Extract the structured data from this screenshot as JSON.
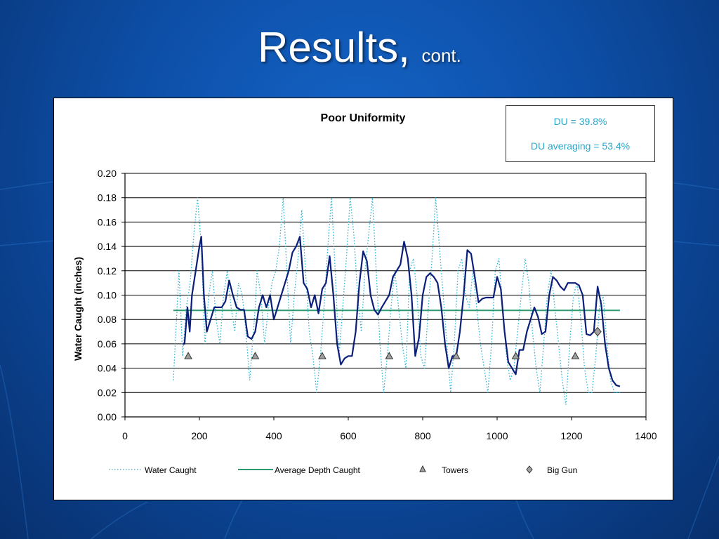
{
  "slide": {
    "title_main": "Results,",
    "title_sub": "cont."
  },
  "du_box": {
    "line1": "DU = 39.8%",
    "line2": "DU averaging = 53.4%"
  },
  "colors": {
    "water_caught": "#27b2d6",
    "smoothed_line": "#0b1f7a",
    "average_depth": "#2e9a70",
    "towers_fill": "#a0a0a0",
    "big_gun_fill": "#a0a0a0",
    "du_text": "#2aa7c9"
  },
  "chart_data": {
    "type": "line",
    "title": "Poor Uniformity",
    "xlabel": "",
    "ylabel": "Water Caught (inches)",
    "xlim": [
      0,
      1400
    ],
    "ylim": [
      0,
      0.2
    ],
    "x_ticks": [
      "0",
      "200",
      "400",
      "600",
      "800",
      "1000",
      "1200",
      "1400"
    ],
    "y_ticks": [
      "0.00",
      "0.02",
      "0.04",
      "0.06",
      "0.08",
      "0.10",
      "0.12",
      "0.14",
      "0.16",
      "0.18",
      "0.20"
    ],
    "grid": "horizontal",
    "legend": "bottom",
    "legend_entries": [
      "Water Caught",
      "Average Depth Caught",
      "Towers",
      "Big Gun"
    ],
    "series": [
      {
        "name": "Water Caught",
        "style": "dotted",
        "x": [
          130,
          145,
          155,
          165,
          175,
          185,
          195,
          205,
          215,
          225,
          235,
          245,
          255,
          265,
          275,
          285,
          295,
          305,
          315,
          325,
          335,
          345,
          350,
          355,
          365,
          375,
          385,
          395,
          405,
          415,
          425,
          435,
          445,
          455,
          465,
          470,
          475,
          485,
          495,
          505,
          515,
          525,
          535,
          545,
          555,
          565,
          575,
          585,
          595,
          605,
          615,
          625,
          635,
          645,
          655,
          665,
          675,
          685,
          695,
          705,
          715,
          725,
          735,
          745,
          755,
          760,
          765,
          775,
          785,
          795,
          805,
          815,
          825,
          835,
          845,
          855,
          865,
          875,
          885,
          895,
          905,
          915,
          925,
          935,
          945,
          955,
          965,
          975,
          985,
          995,
          1005,
          1015,
          1025,
          1035,
          1045,
          1055,
          1065,
          1075,
          1085,
          1095,
          1105,
          1115,
          1125,
          1135,
          1145,
          1155,
          1165,
          1175,
          1185,
          1195,
          1205,
          1215,
          1225,
          1235,
          1245,
          1255,
          1265,
          1275,
          1285,
          1295,
          1305,
          1315,
          1330
        ],
        "values": [
          0.03,
          0.12,
          0.05,
          0.09,
          0.11,
          0.15,
          0.18,
          0.14,
          0.06,
          0.1,
          0.12,
          0.08,
          0.06,
          0.1,
          0.12,
          0.09,
          0.07,
          0.11,
          0.1,
          0.07,
          0.03,
          0.07,
          0.09,
          0.12,
          0.1,
          0.06,
          0.09,
          0.11,
          0.12,
          0.14,
          0.18,
          0.12,
          0.06,
          0.1,
          0.13,
          0.15,
          0.17,
          0.12,
          0.07,
          0.05,
          0.02,
          0.05,
          0.09,
          0.14,
          0.18,
          0.12,
          0.05,
          0.09,
          0.13,
          0.18,
          0.15,
          0.1,
          0.07,
          0.12,
          0.15,
          0.18,
          0.12,
          0.06,
          0.02,
          0.05,
          0.09,
          0.12,
          0.09,
          0.06,
          0.04,
          0.08,
          0.12,
          0.13,
          0.1,
          0.05,
          0.04,
          0.09,
          0.13,
          0.18,
          0.14,
          0.1,
          0.06,
          0.02,
          0.06,
          0.12,
          0.13,
          0.1,
          0.09,
          0.12,
          0.09,
          0.06,
          0.04,
          0.02,
          0.06,
          0.12,
          0.13,
          0.09,
          0.05,
          0.03,
          0.04,
          0.07,
          0.1,
          0.13,
          0.11,
          0.07,
          0.04,
          0.02,
          0.06,
          0.1,
          0.12,
          0.09,
          0.06,
          0.03,
          0.01,
          0.06,
          0.1,
          0.11,
          0.08,
          0.04,
          0.02,
          0.02,
          0.05,
          0.09,
          0.1,
          0.06,
          0.03,
          0.02,
          0.02
        ]
      },
      {
        "name": "Smoothed",
        "style": "solid",
        "x": [
          155,
          160,
          168,
          174,
          180,
          190,
          200,
          205,
          212,
          220,
          230,
          240,
          250,
          260,
          270,
          280,
          290,
          300,
          310,
          320,
          330,
          340,
          350,
          360,
          370,
          380,
          390,
          400,
          410,
          420,
          430,
          440,
          450,
          460,
          470,
          480,
          490,
          500,
          510,
          520,
          530,
          540,
          550,
          560,
          570,
          580,
          590,
          600,
          610,
          620,
          630,
          640,
          650,
          660,
          670,
          680,
          690,
          700,
          710,
          720,
          730,
          740,
          750,
          760,
          770,
          780,
          790,
          800,
          810,
          820,
          830,
          840,
          850,
          860,
          870,
          880,
          890,
          900,
          910,
          920,
          930,
          940,
          950,
          960,
          970,
          980,
          990,
          1000,
          1010,
          1020,
          1030,
          1040,
          1050,
          1060,
          1070,
          1080,
          1090,
          1100,
          1110,
          1120,
          1130,
          1140,
          1150,
          1160,
          1170,
          1180,
          1190,
          1200,
          1210,
          1220,
          1230,
          1240,
          1250,
          1260,
          1270,
          1280,
          1290,
          1300,
          1310,
          1320,
          1330
        ],
        "values": [
          0.06,
          0.06,
          0.09,
          0.07,
          0.1,
          0.12,
          0.14,
          0.148,
          0.1,
          0.07,
          0.08,
          0.09,
          0.09,
          0.09,
          0.095,
          0.112,
          0.1,
          0.09,
          0.088,
          0.088,
          0.066,
          0.064,
          0.07,
          0.09,
          0.1,
          0.09,
          0.1,
          0.08,
          0.09,
          0.1,
          0.11,
          0.12,
          0.135,
          0.14,
          0.148,
          0.11,
          0.105,
          0.09,
          0.1,
          0.085,
          0.105,
          0.11,
          0.132,
          0.1,
          0.06,
          0.043,
          0.048,
          0.05,
          0.05,
          0.07,
          0.11,
          0.136,
          0.128,
          0.1,
          0.088,
          0.084,
          0.09,
          0.095,
          0.1,
          0.115,
          0.12,
          0.125,
          0.144,
          0.13,
          0.1,
          0.05,
          0.065,
          0.1,
          0.115,
          0.118,
          0.115,
          0.11,
          0.09,
          0.06,
          0.04,
          0.05,
          0.05,
          0.07,
          0.1,
          0.137,
          0.134,
          0.115,
          0.094,
          0.097,
          0.098,
          0.098,
          0.098,
          0.115,
          0.105,
          0.07,
          0.045,
          0.04,
          0.035,
          0.055,
          0.055,
          0.07,
          0.08,
          0.09,
          0.082,
          0.068,
          0.07,
          0.1,
          0.115,
          0.112,
          0.107,
          0.104,
          0.11,
          0.11,
          0.11,
          0.108,
          0.1,
          0.068,
          0.067,
          0.07,
          0.107,
          0.092,
          0.06,
          0.04,
          0.03,
          0.026,
          0.025
        ]
      },
      {
        "name": "Average Depth Caught",
        "style": "solid",
        "x": [
          130,
          1330
        ],
        "values": [
          0.0875,
          0.0875
        ]
      },
      {
        "name": "Towers",
        "style": "marker-triangle",
        "x": [
          170,
          350,
          530,
          710,
          890,
          1050,
          1210
        ],
        "values": [
          0.05,
          0.05,
          0.05,
          0.05,
          0.05,
          0.05,
          0.05
        ]
      },
      {
        "name": "Big Gun",
        "style": "marker-diamond",
        "x": [
          1270
        ],
        "values": [
          0.07
        ]
      }
    ]
  }
}
